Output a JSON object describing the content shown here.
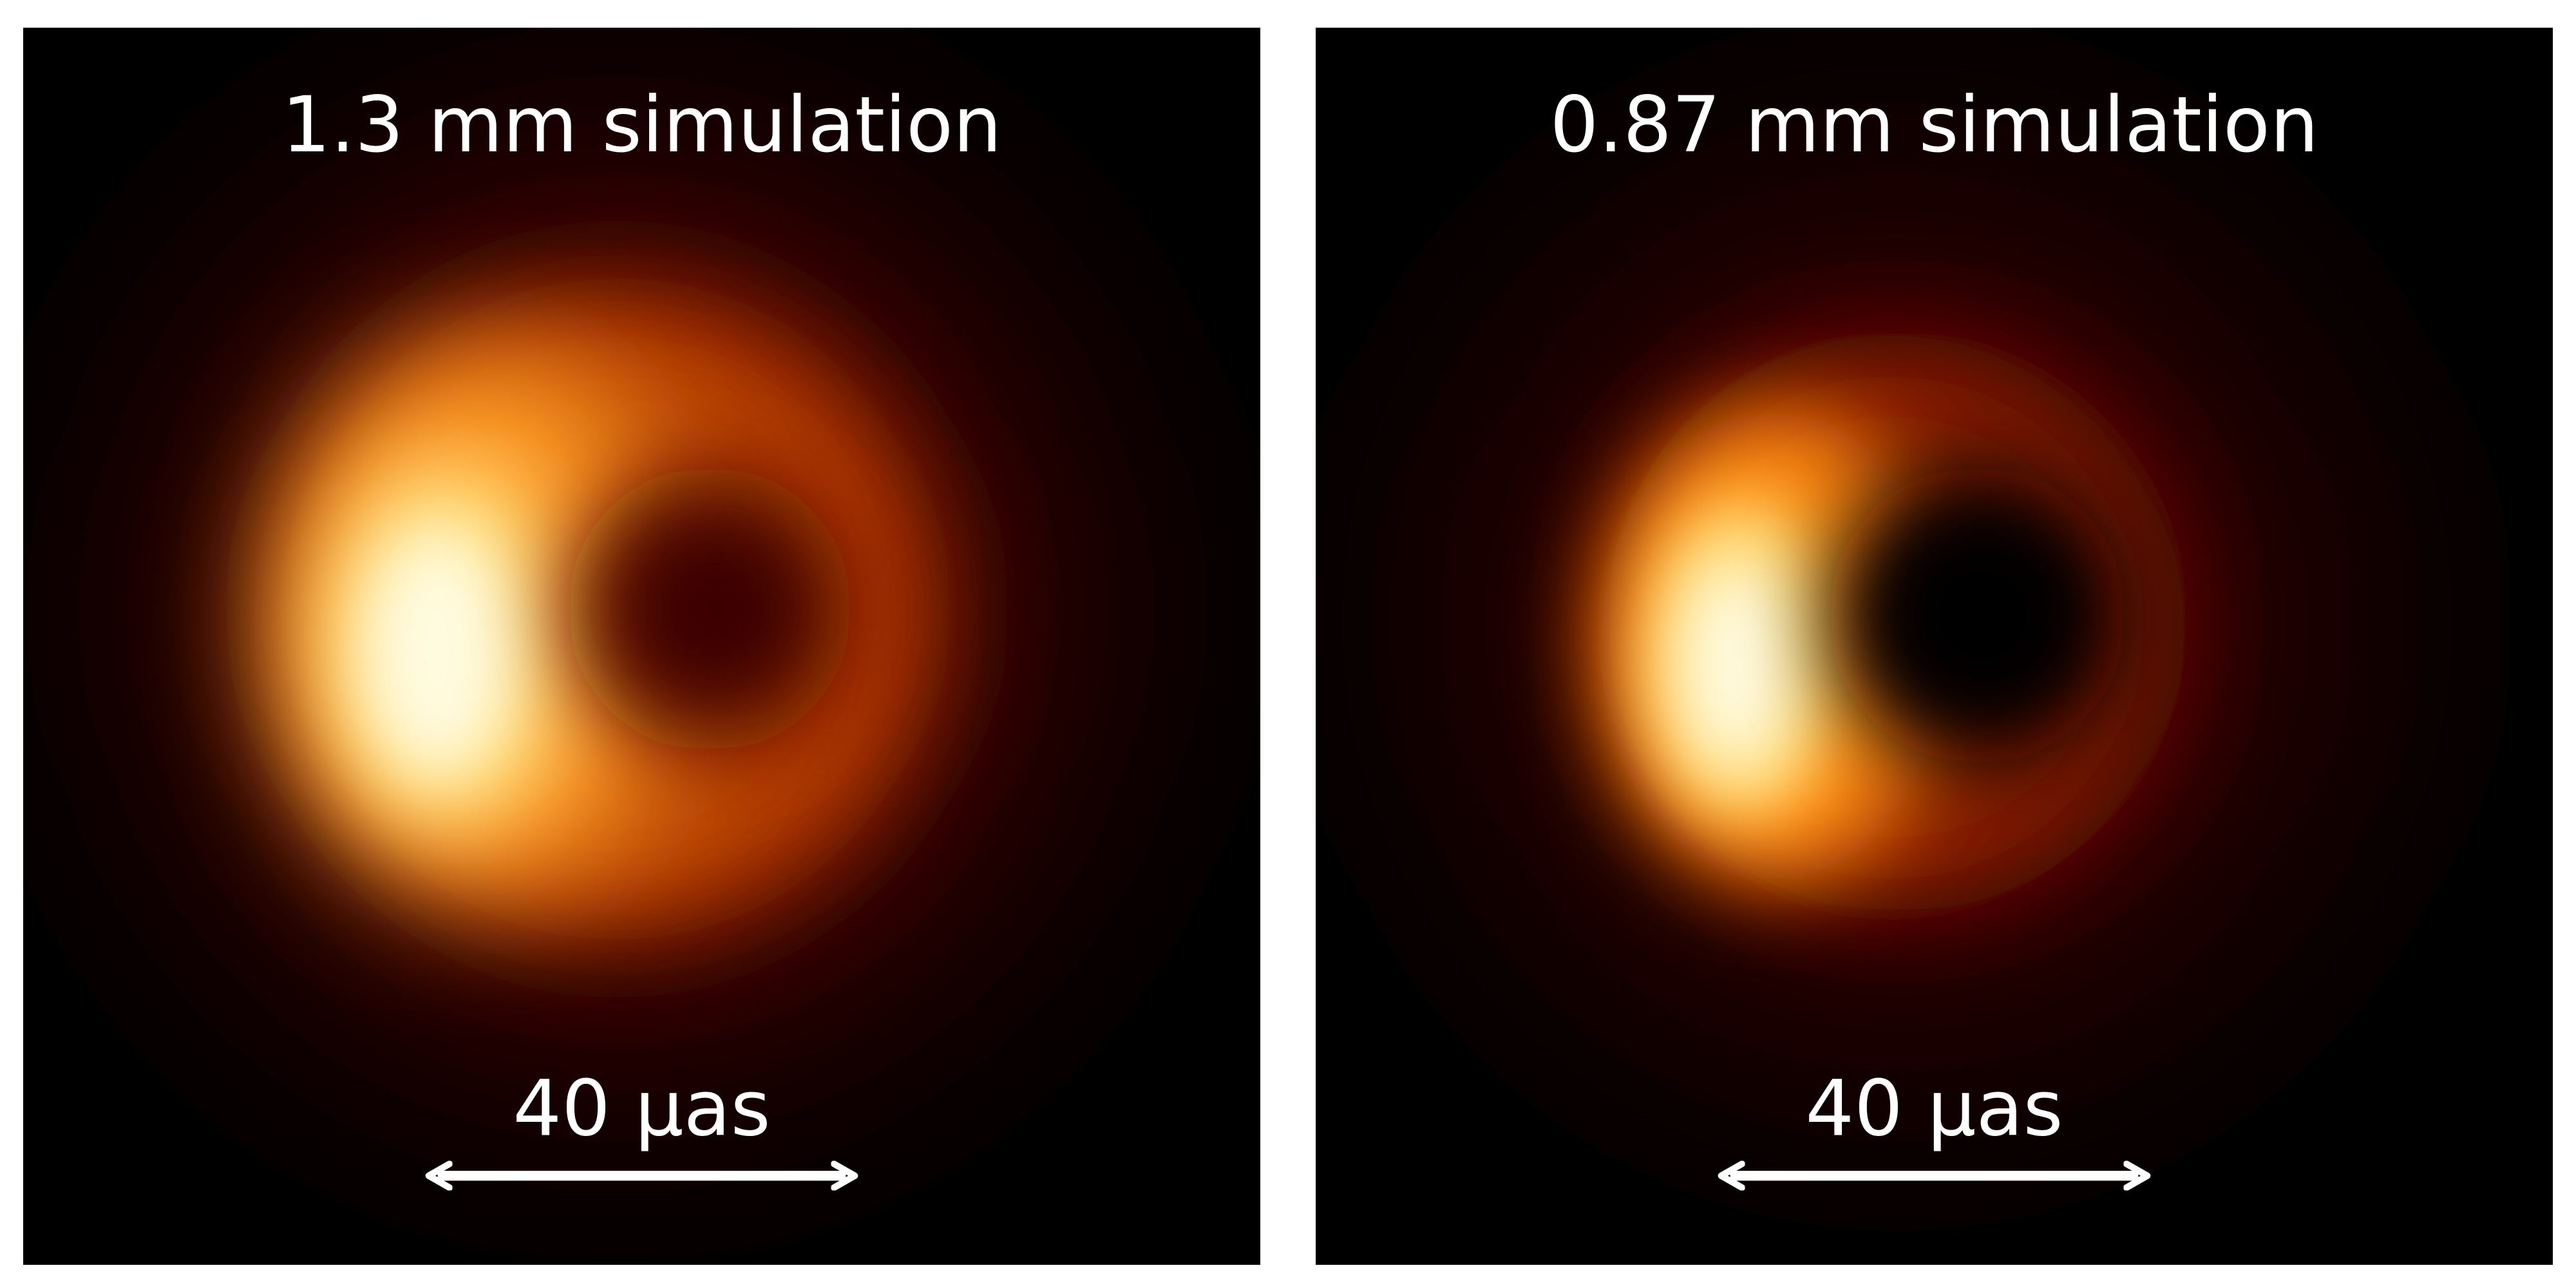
{
  "panels": [
    {
      "title": "1.3 mm simulation",
      "scale_label": "40 μas"
    },
    {
      "title": "0.87 mm simulation",
      "scale_label": "40 μas"
    }
  ]
}
